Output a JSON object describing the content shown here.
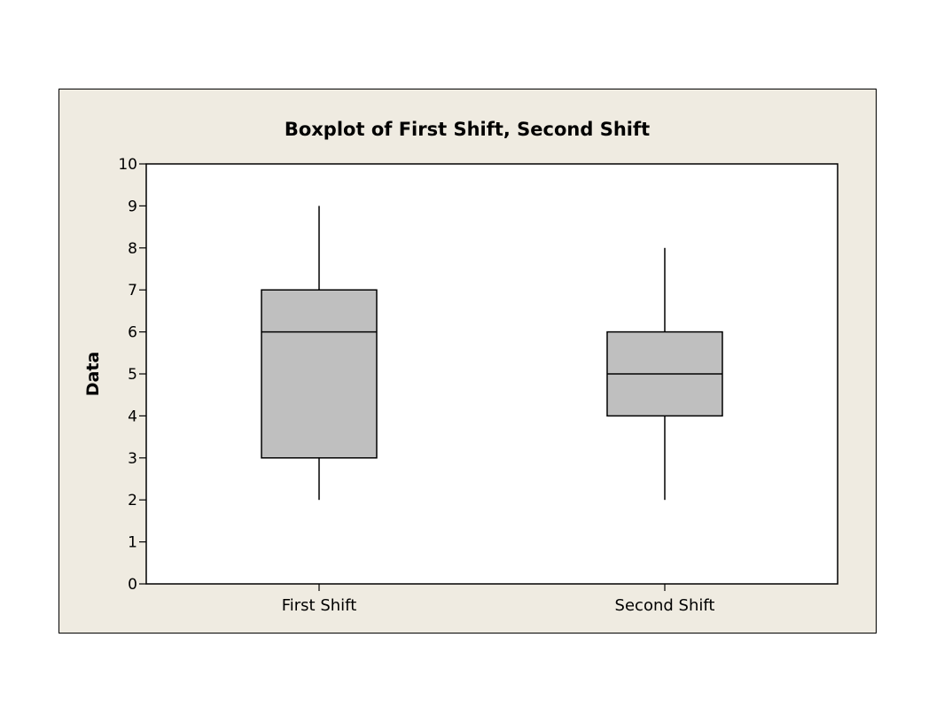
{
  "chart_data": {
    "type": "boxplot",
    "title": "Boxplot of First Shift, Second Shift",
    "xlabel": "",
    "ylabel": "Data",
    "ylim": [
      0,
      10
    ],
    "yticks": [
      "0",
      "1",
      "2",
      "3",
      "4",
      "5",
      "6",
      "7",
      "8",
      "9",
      "10"
    ],
    "categories": [
      "First Shift",
      "Second Shift"
    ],
    "boxes": [
      {
        "category": "First Shift",
        "min": 2,
        "q1": 3,
        "median": 6,
        "q3": 7,
        "max": 9
      },
      {
        "category": "Second Shift",
        "min": 2,
        "q1": 4,
        "median": 5,
        "q3": 6,
        "max": 8
      }
    ],
    "grid": false,
    "box_fill": "#bfbfbf",
    "frame_background": "#efebe1",
    "plot_background": "#ffffff",
    "line_color": "#000000"
  }
}
